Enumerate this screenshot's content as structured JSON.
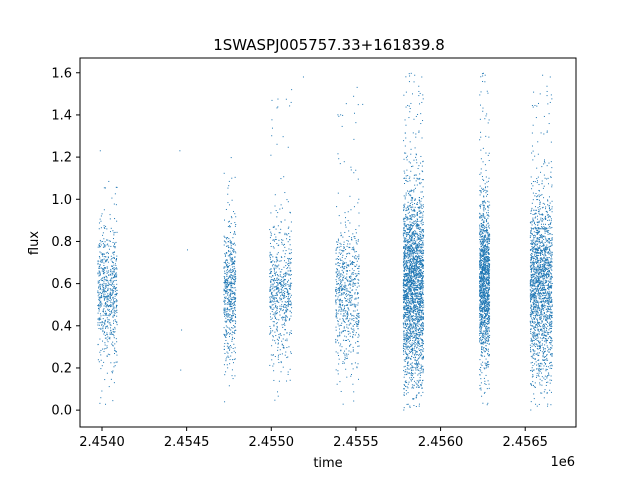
{
  "chart_data": {
    "type": "scatter",
    "title": "1SWASPJ005757.33+161839.8",
    "xlabel": "time",
    "ylabel": "flux",
    "x_offset_label": "1e6",
    "xlim": [
      2453870,
      2456800
    ],
    "ylim": [
      -0.08,
      1.67
    ],
    "x_ticks": [
      2453900,
      2454000,
      2454500,
      2455000,
      2455500,
      2456000,
      2456500
    ],
    "x_tick_labels": [
      "",
      "2.4540",
      "2.4545",
      "2.4550",
      "2.4555",
      "2.4560",
      "2.4565"
    ],
    "y_ticks": [
      0.0,
      0.2,
      0.4,
      0.6,
      0.8,
      1.0,
      1.2,
      1.4,
      1.6
    ],
    "y_tick_labels": [
      "0.0",
      "0.2",
      "0.4",
      "0.6",
      "0.8",
      "1.0",
      "1.2",
      "1.4",
      "1.6"
    ],
    "grid": false,
    "marker_color": "#1f77b4",
    "series": [
      {
        "clusters": [
          {
            "x_range": [
              2453975,
              2454090
            ],
            "density": 650,
            "y_center": 0.55,
            "y_spread": 0.28,
            "y_min": 0.02,
            "y_max": 1.1
          },
          {
            "x_range": [
              2454720,
              2454790
            ],
            "density": 550,
            "y_center": 0.55,
            "y_spread": 0.28,
            "y_min": 0.02,
            "y_max": 1.2
          },
          {
            "x_range": [
              2454990,
              2455120
            ],
            "density": 600,
            "y_center": 0.55,
            "y_spread": 0.28,
            "y_min": 0.02,
            "y_max": 1.58
          },
          {
            "x_range": [
              2455380,
              2455520
            ],
            "density": 650,
            "y_center": 0.55,
            "y_spread": 0.3,
            "y_min": 0.01,
            "y_max": 1.55
          },
          {
            "x_range": [
              2455780,
              2455900
            ],
            "density": 2400,
            "y_center": 0.58,
            "y_spread": 0.4,
            "y_min": 0.0,
            "y_max": 1.6
          },
          {
            "x_range": [
              2456230,
              2456290
            ],
            "density": 1400,
            "y_center": 0.6,
            "y_spread": 0.34,
            "y_min": 0.02,
            "y_max": 1.6
          },
          {
            "x_range": [
              2456530,
              2456660
            ],
            "density": 1800,
            "y_center": 0.58,
            "y_spread": 0.38,
            "y_min": 0.0,
            "y_max": 1.6
          }
        ],
        "stray_points": [
          {
            "x": 2454470,
            "y": 0.38
          },
          {
            "x": 2454465,
            "y": 0.19
          },
          {
            "x": 2454505,
            "y": 0.76
          },
          {
            "x": 2454460,
            "y": 1.23
          },
          {
            "x": 2453990,
            "y": 1.23
          },
          {
            "x": 2455190,
            "y": 1.58
          },
          {
            "x": 2455120,
            "y": 1.52
          },
          {
            "x": 2455540,
            "y": 1.45
          }
        ]
      }
    ]
  }
}
